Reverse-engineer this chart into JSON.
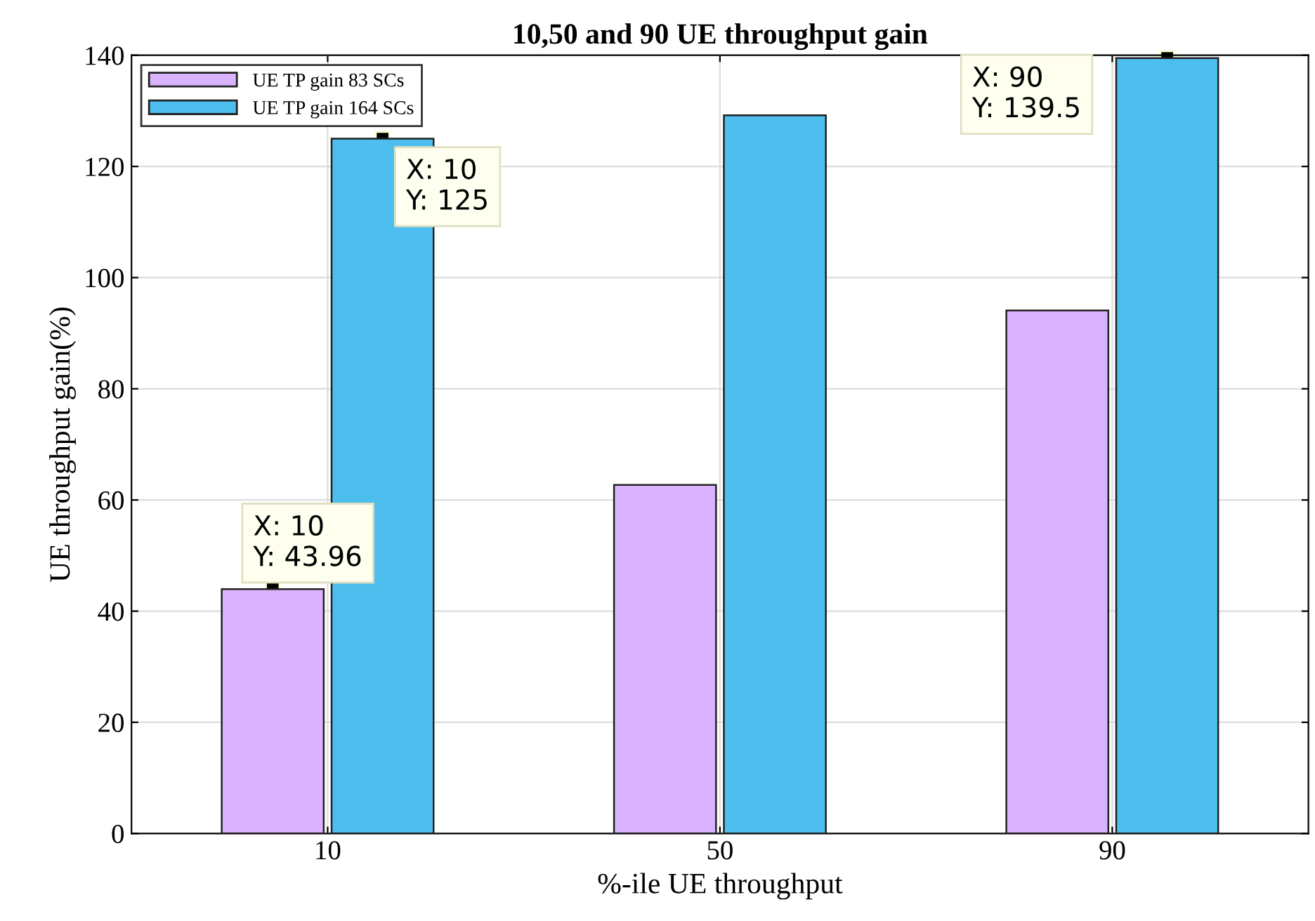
{
  "chart_data": {
    "type": "bar",
    "title": "10,50 and 90 UE throughput gain",
    "xlabel": "%-ile UE throughput",
    "ylabel": "UE throughput gain(%)",
    "categories": [
      "10",
      "50",
      "90"
    ],
    "series": [
      {
        "name": "UE TP gain 83 SCs",
        "color": "#dab3ff",
        "values": [
          43.96,
          62.7,
          94.1
        ]
      },
      {
        "name": "UE TP gain 164 SCs",
        "color": "#4dbeed",
        "values": [
          125,
          129.2,
          139.5
        ]
      }
    ],
    "ylim": [
      0,
      140
    ],
    "yticks": [
      0,
      20,
      40,
      60,
      80,
      100,
      120,
      140
    ],
    "grid": true,
    "legend": "top left",
    "annotations": [
      {
        "text": "X: 10\nY: 43.96",
        "x": "10",
        "y": 43.96
      },
      {
        "text": "X: 10\nY: 125",
        "x": "10",
        "y": 125
      },
      {
        "text": "X: 90\nY: 139.5",
        "x": "90",
        "y": 139.5
      }
    ]
  }
}
